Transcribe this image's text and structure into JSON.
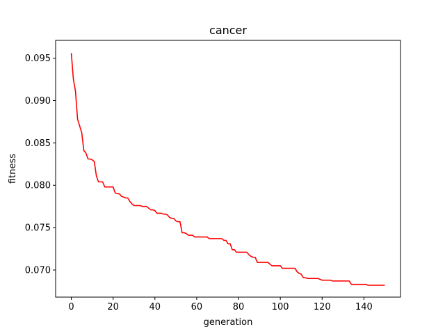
{
  "chart_data": {
    "type": "line",
    "title": "cancer",
    "xlabel": "generation",
    "ylabel": "fitness",
    "xlim": [
      -7.5,
      157.5
    ],
    "ylim": [
      0.0668,
      0.0971
    ],
    "xticks": [
      0,
      20,
      40,
      60,
      80,
      100,
      120,
      140
    ],
    "xtick_labels": [
      "0",
      "20",
      "40",
      "60",
      "80",
      "100",
      "120",
      "140"
    ],
    "yticks": [
      0.07,
      0.075,
      0.08,
      0.085,
      0.09,
      0.095
    ],
    "ytick_labels": [
      "0.070",
      "0.075",
      "0.080",
      "0.085",
      "0.090",
      "0.095"
    ],
    "grid": false,
    "series": [
      {
        "color": "#ff0000",
        "x": [
          0,
          1,
          2,
          3,
          4,
          5,
          6,
          7,
          8,
          9,
          10,
          11,
          12,
          13,
          14,
          15,
          16,
          17,
          18,
          19,
          20,
          21,
          22,
          23,
          24,
          25,
          26,
          27,
          28,
          29,
          30,
          31,
          32,
          33,
          34,
          35,
          36,
          37,
          38,
          39,
          40,
          41,
          42,
          43,
          44,
          45,
          46,
          47,
          48,
          49,
          50,
          51,
          52,
          53,
          54,
          55,
          56,
          57,
          58,
          59,
          60,
          61,
          62,
          63,
          64,
          65,
          66,
          67,
          68,
          69,
          70,
          71,
          72,
          73,
          74,
          75,
          76,
          77,
          78,
          79,
          80,
          81,
          82,
          83,
          84,
          85,
          86,
          87,
          88,
          89,
          90,
          91,
          92,
          93,
          94,
          95,
          96,
          97,
          98,
          99,
          100,
          101,
          102,
          103,
          104,
          105,
          106,
          107,
          108,
          109,
          110,
          111,
          112,
          113,
          114,
          115,
          116,
          117,
          118,
          119,
          120,
          121,
          122,
          123,
          124,
          125,
          126,
          127,
          128,
          129,
          130,
          131,
          132,
          133,
          134,
          135,
          136,
          137,
          138,
          139,
          140,
          141,
          142,
          143,
          144,
          145,
          146,
          147,
          148,
          149,
          150
        ],
        "y": [
          0.0956,
          0.0925,
          0.0911,
          0.0878,
          0.087,
          0.0862,
          0.0841,
          0.0838,
          0.0831,
          0.0831,
          0.083,
          0.0828,
          0.0811,
          0.0804,
          0.0804,
          0.0804,
          0.0798,
          0.0798,
          0.0798,
          0.0798,
          0.0798,
          0.0791,
          0.079,
          0.079,
          0.0787,
          0.0786,
          0.0785,
          0.0785,
          0.0781,
          0.0778,
          0.0776,
          0.0776,
          0.0776,
          0.0776,
          0.0775,
          0.0775,
          0.0775,
          0.0773,
          0.0771,
          0.0771,
          0.077,
          0.0767,
          0.0767,
          0.0767,
          0.0766,
          0.0766,
          0.0765,
          0.0762,
          0.0761,
          0.0761,
          0.0758,
          0.0757,
          0.0757,
          0.0744,
          0.0744,
          0.0743,
          0.0741,
          0.0741,
          0.0741,
          0.0739,
          0.0739,
          0.0739,
          0.0739,
          0.0739,
          0.0739,
          0.0739,
          0.0737,
          0.0737,
          0.0737,
          0.0737,
          0.0737,
          0.0737,
          0.0737,
          0.0735,
          0.0735,
          0.0731,
          0.0731,
          0.0724,
          0.0724,
          0.0721,
          0.0721,
          0.0721,
          0.0721,
          0.0721,
          0.0721,
          0.0718,
          0.0716,
          0.0715,
          0.0715,
          0.0709,
          0.0709,
          0.0709,
          0.0709,
          0.0709,
          0.0709,
          0.0707,
          0.0705,
          0.0705,
          0.0705,
          0.0705,
          0.0705,
          0.0702,
          0.0702,
          0.0702,
          0.0702,
          0.0702,
          0.0702,
          0.0702,
          0.0698,
          0.0696,
          0.0695,
          0.0691,
          0.0691,
          0.069,
          0.069,
          0.069,
          0.069,
          0.069,
          0.069,
          0.0689,
          0.0688,
          0.0688,
          0.0688,
          0.0688,
          0.0688,
          0.0687,
          0.0687,
          0.0687,
          0.0687,
          0.0687,
          0.0687,
          0.0687,
          0.0687,
          0.0687,
          0.0683,
          0.0683,
          0.0683,
          0.0683,
          0.0683,
          0.0683,
          0.0683,
          0.0683,
          0.0682,
          0.0682,
          0.0682,
          0.0682,
          0.0682,
          0.0682,
          0.0682,
          0.0682,
          0.0682
        ]
      }
    ]
  }
}
